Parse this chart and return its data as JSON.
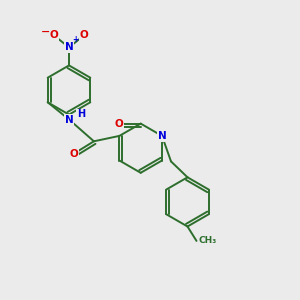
{
  "background_color": "#ebebeb",
  "bond_color": "#2d6e2d",
  "atom_colors": {
    "N": "#0000dd",
    "O": "#dd0000",
    "C": "#2d6e2d"
  },
  "figsize": [
    3.0,
    3.0
  ],
  "dpi": 100,
  "lw": 1.4
}
